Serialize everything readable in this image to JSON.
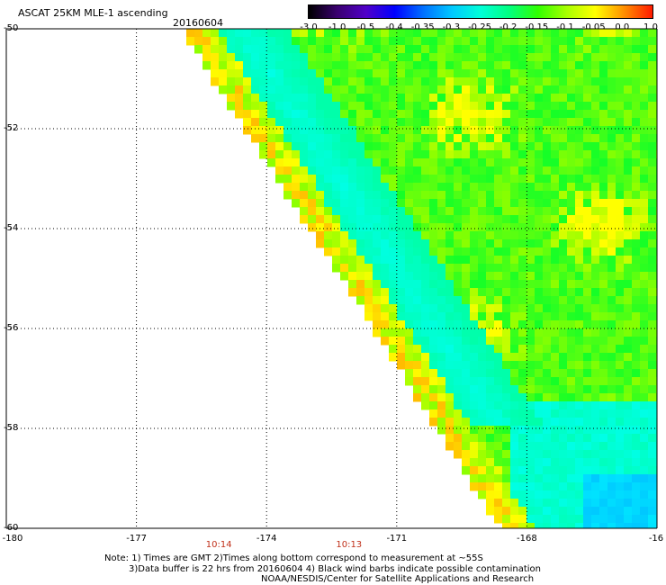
{
  "header": {
    "title": "ASCAT 25KM MLE-1 ascending",
    "date": "20160604"
  },
  "colorbar": {
    "labels": [
      "-3.0",
      "-1.0",
      "-0.5",
      "-0.4",
      "-0.35",
      "-0.3",
      "-0.25",
      "-0.2",
      "-0.15",
      "-0.1",
      "-0.05",
      "0.0",
      "1.0"
    ],
    "colors": [
      "#000000",
      "#3a0070",
      "#5000c8",
      "#0000ff",
      "#0070ff",
      "#00c8ff",
      "#00ffd8",
      "#00ff80",
      "#30ff00",
      "#a8ff00",
      "#ffff00",
      "#ff9000",
      "#ff1a00"
    ]
  },
  "axes": {
    "lat_labels": [
      "-50",
      "-52",
      "-54",
      "-56",
      "-58",
      "-60"
    ],
    "lon_labels": [
      "-180",
      "-177",
      "-174",
      "-171",
      "-168",
      "-16"
    ],
    "lat_range": [
      -60,
      -50
    ],
    "lon_range": [
      -180,
      -165
    ]
  },
  "time_labels": [
    {
      "text": "10:14",
      "lon": -175.1
    },
    {
      "text": "10:13",
      "lon": -172.1
    }
  ],
  "notes": {
    "line1": "Note: 1) Times are GMT 2)Times along bottom correspond to measurement at ~55S",
    "line2": "3)Data buffer is 22 hrs from 20160604 4) Black wind barbs indicate possible contamination",
    "line3": "NOAA/NESDIS/Center for Satellite Applications and Research"
  }
}
